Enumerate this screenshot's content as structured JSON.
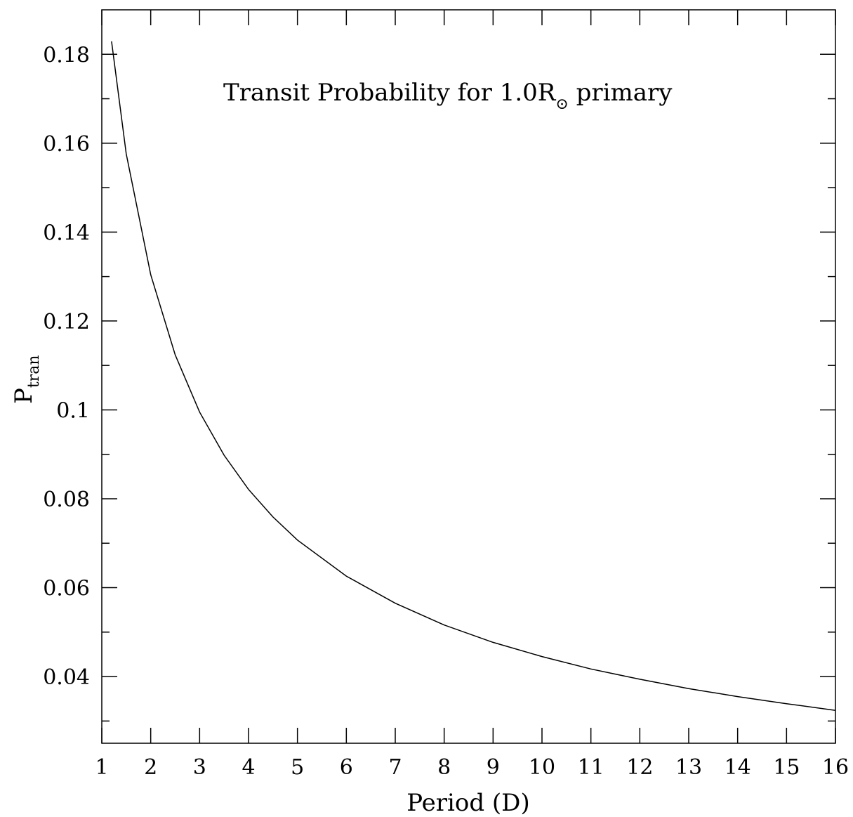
{
  "chart_data": {
    "type": "line",
    "title": "",
    "xlabel": "Period (D)",
    "ylabel": "P",
    "ylabel_subscript": "tran",
    "xlim": [
      1,
      16
    ],
    "ylim": [
      0.025,
      0.19
    ],
    "x_ticks": [
      1,
      2,
      3,
      4,
      5,
      6,
      7,
      8,
      9,
      10,
      11,
      12,
      13,
      14,
      15,
      16
    ],
    "x_tick_labels": [
      "1",
      "2",
      "3",
      "4",
      "5",
      "6",
      "7",
      "8",
      "9",
      "10",
      "11",
      "12",
      "13",
      "14",
      "15",
      "16"
    ],
    "y_ticks": [
      0.04,
      0.06,
      0.08,
      0.1,
      0.12,
      0.14,
      0.16,
      0.18
    ],
    "y_tick_labels": [
      "0.04",
      "0.06",
      "0.08",
      "0.1",
      "0.12",
      "0.14",
      "0.16",
      "0.18"
    ],
    "annotation": {
      "text": "Transit Probability for 1.0R",
      "subscript": "⊙",
      "suffix": " primary"
    },
    "grid": false,
    "series": [
      {
        "color": "#000000",
        "x": [
          1.2,
          1.5,
          2,
          2.5,
          3,
          3.5,
          4,
          4.5,
          5,
          6,
          7,
          8,
          9,
          10,
          11,
          12,
          13,
          14,
          15,
          16
        ],
        "y": [
          0.1829,
          0.1576,
          0.1304,
          0.1124,
          0.0995,
          0.0898,
          0.0821,
          0.0759,
          0.0707,
          0.0626,
          0.0565,
          0.0516,
          0.0477,
          0.0445,
          0.0417,
          0.0394,
          0.0373,
          0.0355,
          0.0339,
          0.0324
        ]
      }
    ]
  }
}
